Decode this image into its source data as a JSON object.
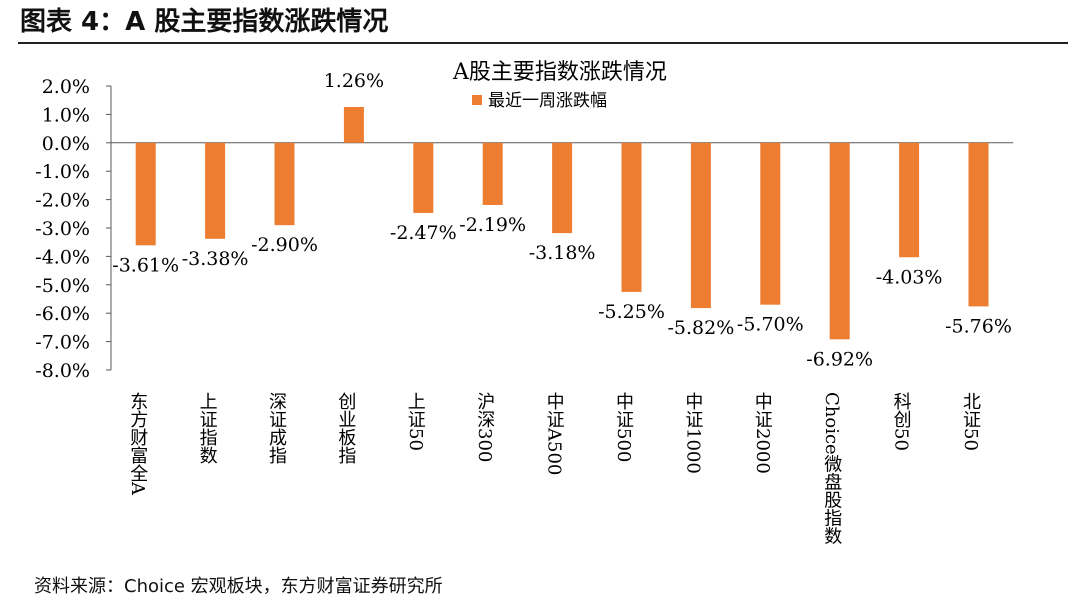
{
  "figure": {
    "header": "图表 4：A 股主要指数涨跌情况",
    "source": "资料来源：Choice 宏观板块，东方财富证券研究所"
  },
  "chart_data": {
    "type": "bar",
    "title": "A股主要指数涨跌情况",
    "xlabel": "",
    "ylabel": "",
    "ylim": [
      -8.0,
      2.0
    ],
    "yticks": [
      "2.0%",
      "1.0%",
      "0.0%",
      "-1.0%",
      "-2.0%",
      "-3.0%",
      "-4.0%",
      "-5.0%",
      "-6.0%",
      "-7.0%",
      "-8.0%"
    ],
    "grid": false,
    "legend": "top-center",
    "bar_color": "#ED7D31",
    "categories": [
      "东方财富全A",
      "上证指数",
      "深证成指",
      "创业板指",
      "上证50",
      "沪深300",
      "中证A500",
      "中证500",
      "中证1000",
      "中证2000",
      "Choice微盘股指数",
      "科创50",
      "北证50"
    ],
    "series": [
      {
        "name": "最近一周涨跌幅",
        "values": [
          -3.61,
          -3.38,
          -2.9,
          1.26,
          -2.47,
          -2.19,
          -3.18,
          -5.25,
          -5.82,
          -5.7,
          -6.92,
          -4.03,
          -5.76
        ],
        "labels": [
          "-3.61%",
          "-3.38%",
          "-2.90%",
          "1.26%",
          "-2.47%",
          "-2.19%",
          "-3.18%",
          "-5.25%",
          "-5.82%",
          "-5.70%",
          "-6.92%",
          "-4.03%",
          "-5.76%"
        ]
      }
    ]
  }
}
